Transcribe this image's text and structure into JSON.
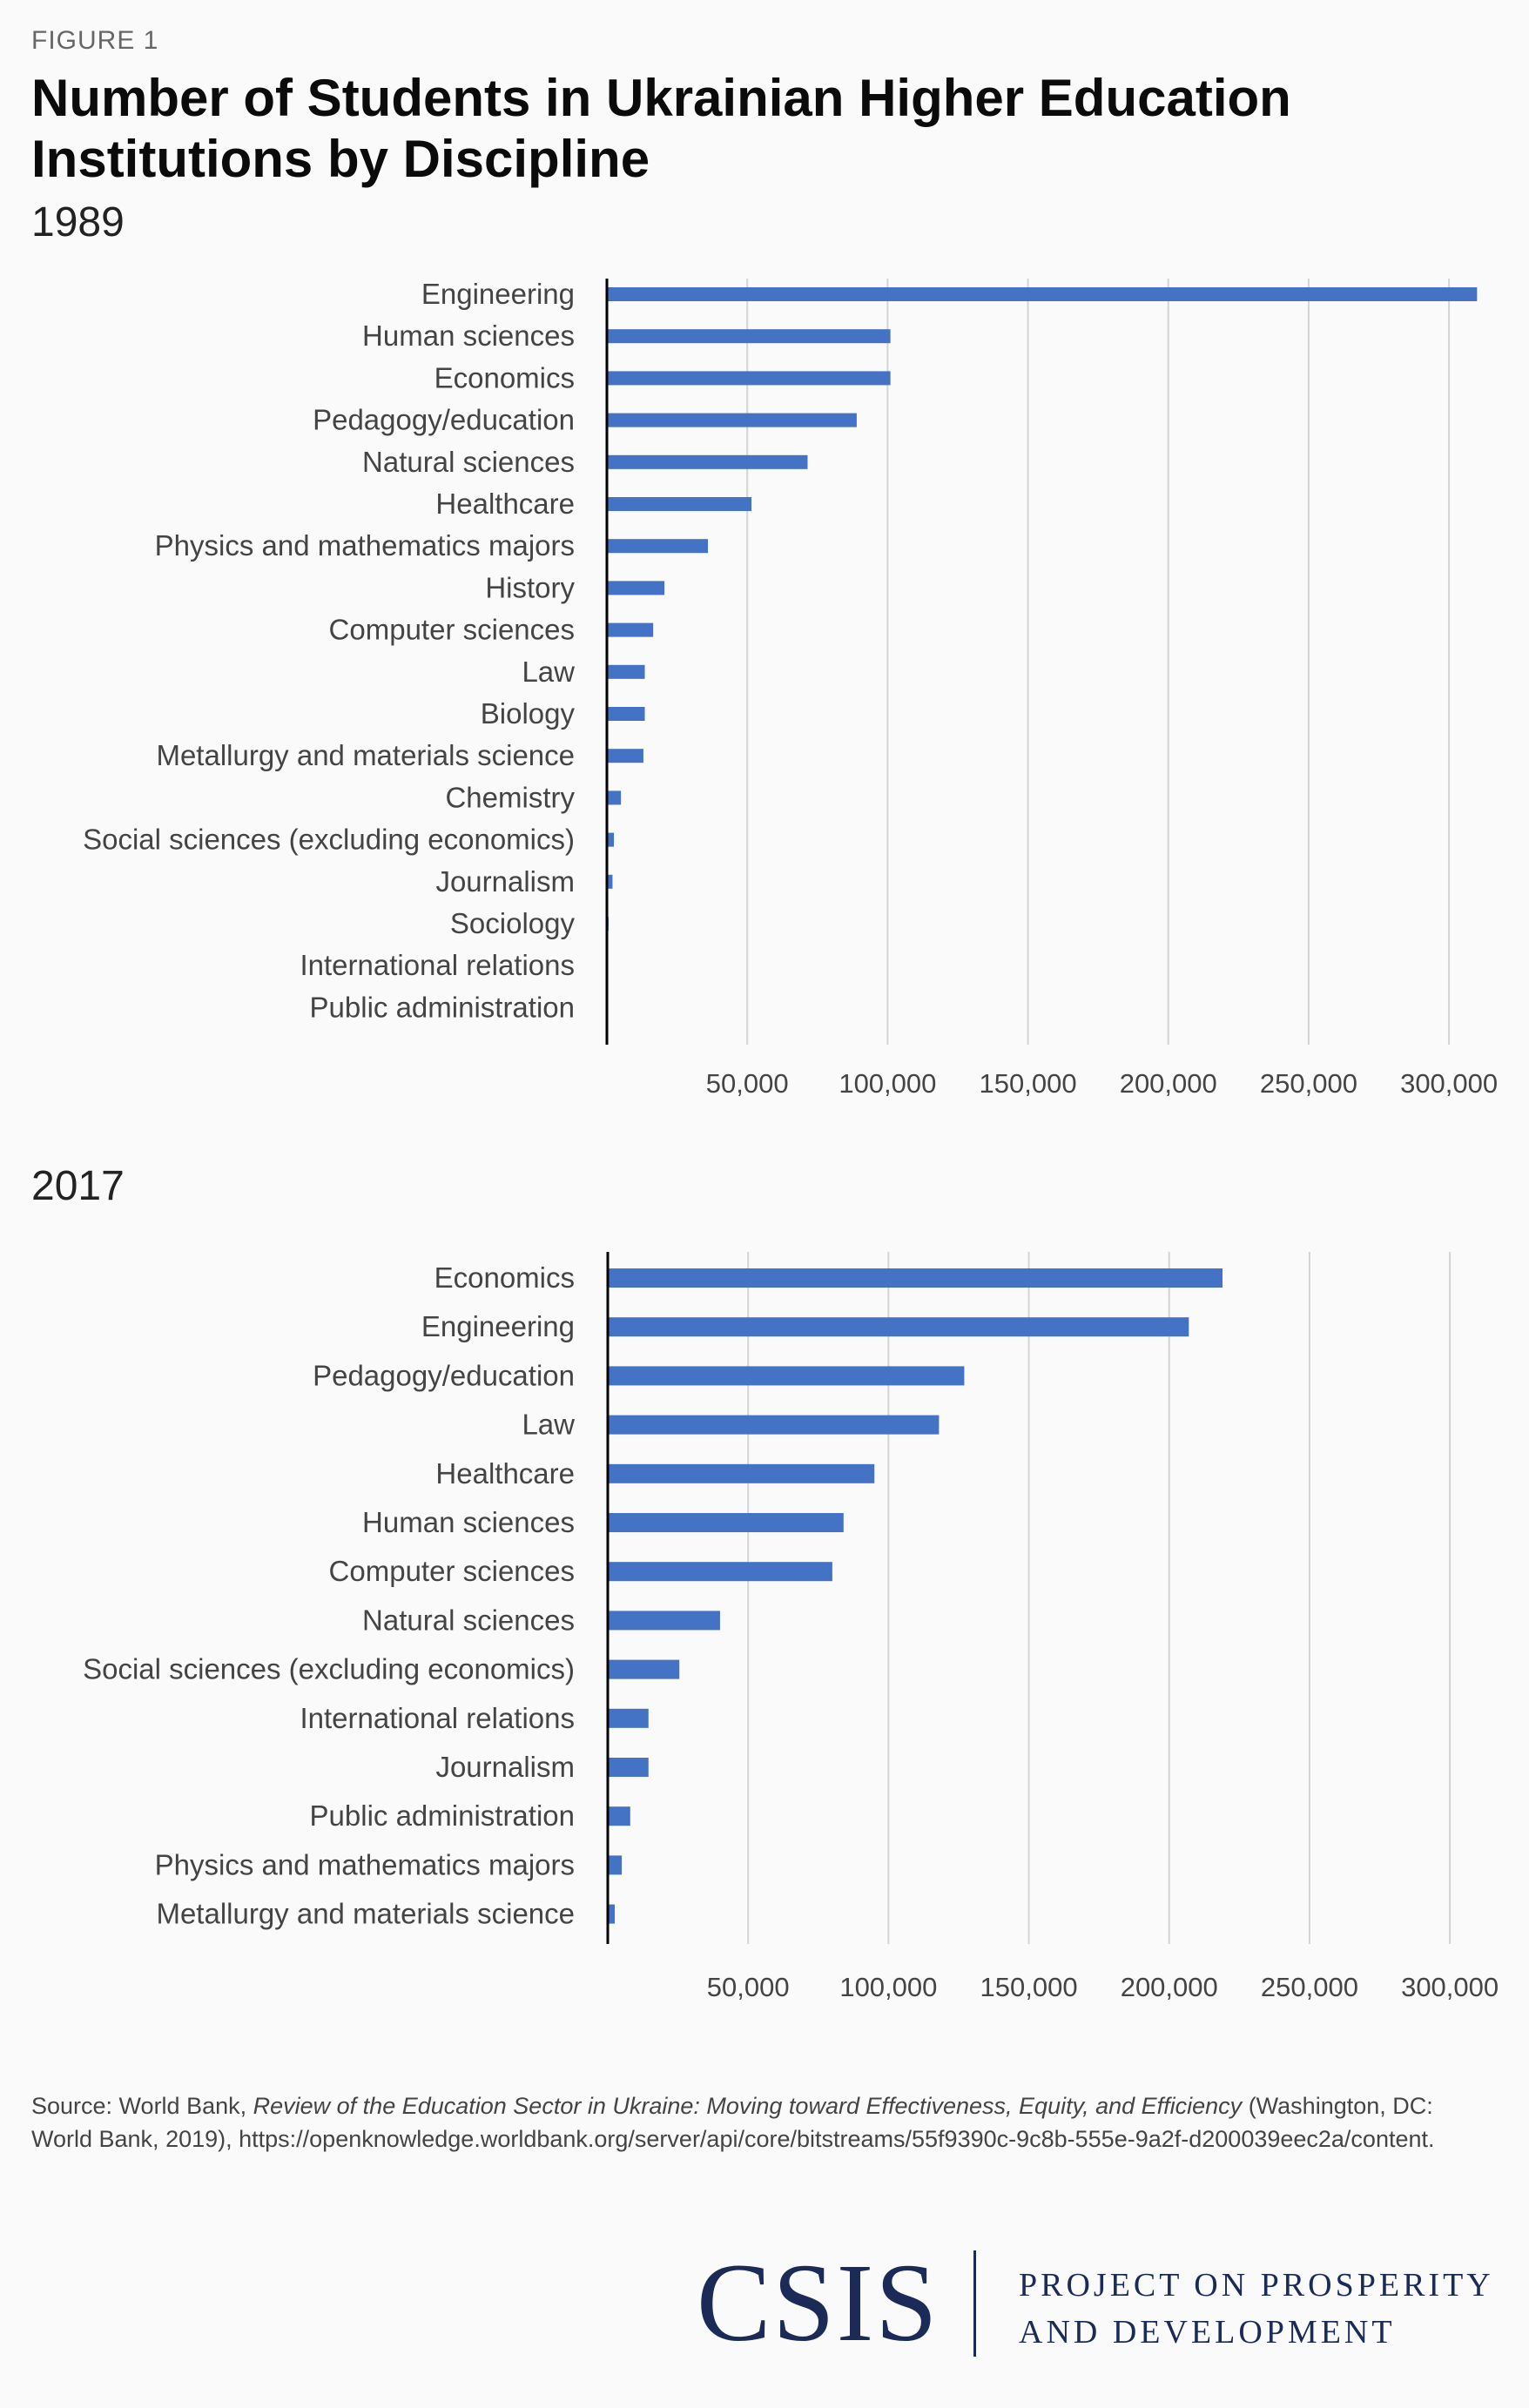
{
  "figure_label": "FIGURE 1",
  "title": "Number of Students in Ukrainian Higher Education Institutions by Discipline",
  "chart_data": [
    {
      "type": "bar",
      "orientation": "horizontal",
      "subtitle": "1989",
      "categories": [
        "Engineering",
        "Human sciences",
        "Economics",
        "Pedagogy/education",
        "Natural sciences",
        "Healthcare",
        "Physics and mathematics majors",
        "History",
        "Computer sciences",
        "Law",
        "Biology",
        "Metallurgy and materials science",
        "Chemistry",
        "Social sciences (excluding economics)",
        "Journalism",
        "Sociology",
        "International relations",
        "Public administration"
      ],
      "values": [
        310000,
        101000,
        101000,
        89000,
        71500,
        51500,
        36000,
        20500,
        16500,
        13500,
        13500,
        13000,
        5000,
        2500,
        2000,
        600,
        400,
        200
      ],
      "xlim": [
        0,
        315000
      ],
      "xticks": [
        50000,
        100000,
        150000,
        200000,
        250000,
        300000
      ],
      "xtick_labels": [
        "50,000",
        "100,000",
        "150,000",
        "200,000",
        "250,000",
        "300,000"
      ],
      "grid": true,
      "color": "#4472C4"
    },
    {
      "type": "bar",
      "orientation": "horizontal",
      "subtitle": "2017",
      "categories": [
        "Economics",
        "Engineering",
        "Pedagogy/education",
        "Law",
        "Healthcare",
        "Human sciences",
        "Computer sciences",
        "Natural sciences",
        "Social sciences (excluding economics)",
        "International relations",
        "Journalism",
        "Public administration",
        "Physics and mathematics majors",
        "Metallurgy and materials science"
      ],
      "values": [
        219000,
        207000,
        127000,
        118000,
        95000,
        84000,
        80000,
        40000,
        25500,
        14500,
        14500,
        8000,
        5000,
        2500
      ],
      "xlim": [
        0,
        315000
      ],
      "xticks": [
        50000,
        100000,
        150000,
        200000,
        250000,
        300000
      ],
      "xtick_labels": [
        "50,000",
        "100,000",
        "150,000",
        "200,000",
        "250,000",
        "300,000"
      ],
      "grid": true,
      "color": "#4472C4"
    }
  ],
  "source": {
    "prefix": "Source: World Bank, ",
    "italic": "Review of the Education Sector in Ukraine: Moving toward Effectiveness, Equity, and Efficiency",
    "suffix": " (Washington, DC: World Bank, 2019), https://openknowledge.worldbank.org/server/api/core/bitstreams/55f9390c-9c8b-555e-9a2f-d200039eec2a/content."
  },
  "logo": {
    "name": "CSIS",
    "line1": "PROJECT ON PROSPERITY",
    "line2": "AND DEVELOPMENT"
  }
}
